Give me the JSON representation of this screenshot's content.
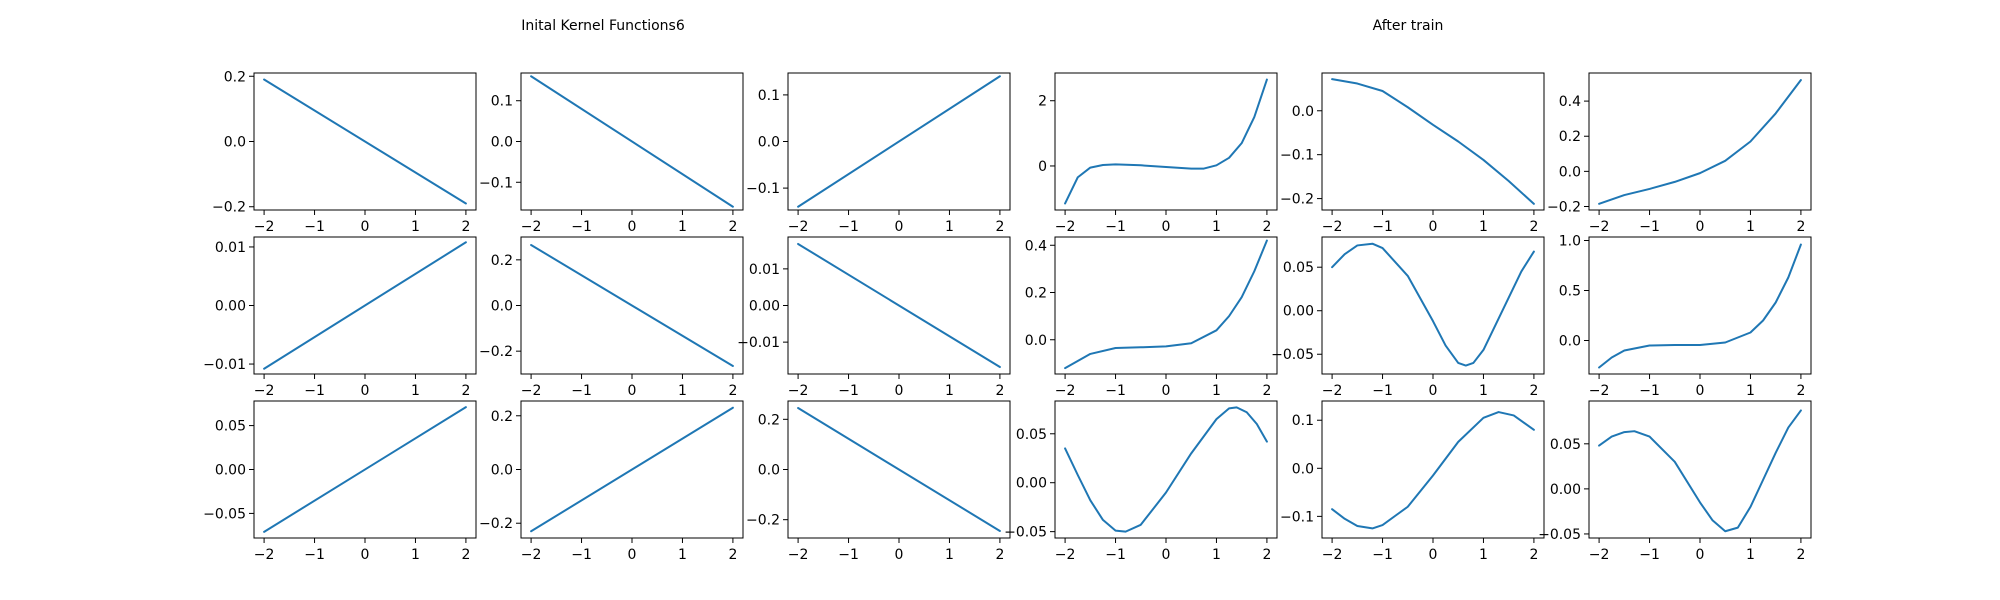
{
  "figure": {
    "left_title": "Inital Kernel Functions6",
    "right_title": "After train",
    "line_color": "#1f77b4"
  },
  "chart_data": [
    {
      "type": "line",
      "xlim": [
        -2,
        2
      ],
      "ylim": [
        -0.21,
        0.21
      ],
      "yticks": [
        -0.2,
        0.0,
        0.2
      ],
      "yticklabels": [
        "−0.2",
        "0.0",
        "0.2"
      ],
      "xticks": [
        -2,
        -1,
        0,
        1,
        2
      ],
      "xticklabels": [
        "−2",
        "−1",
        "0",
        "1",
        "2"
      ],
      "series": [
        {
          "x": [
            -2,
            2
          ],
          "y": [
            0.19,
            -0.19
          ]
        }
      ]
    },
    {
      "type": "line",
      "xlim": [
        -2,
        2
      ],
      "ylim": [
        -0.168,
        0.168
      ],
      "yticks": [
        -0.1,
        0.0,
        0.1
      ],
      "yticklabels": [
        "−0.1",
        "0.0",
        "0.1"
      ],
      "xticks": [
        -2,
        -1,
        0,
        1,
        2
      ],
      "xticklabels": [
        "−2",
        "−1",
        "0",
        "1",
        "2"
      ],
      "series": [
        {
          "x": [
            -2,
            2
          ],
          "y": [
            0.16,
            -0.16
          ]
        }
      ]
    },
    {
      "type": "line",
      "xlim": [
        -2,
        2
      ],
      "ylim": [
        -0.147,
        0.147
      ],
      "yticks": [
        -0.1,
        0.0,
        0.1
      ],
      "yticklabels": [
        "−0.1",
        "0.0",
        "0.1"
      ],
      "xticks": [
        -2,
        -1,
        0,
        1,
        2
      ],
      "xticklabels": [
        "−2",
        "−1",
        "0",
        "1",
        "2"
      ],
      "series": [
        {
          "x": [
            -2,
            2
          ],
          "y": [
            -0.14,
            0.14
          ]
        }
      ]
    },
    {
      "type": "line",
      "xlim": [
        -2,
        2
      ],
      "ylim": [
        -1.35,
        2.85
      ],
      "yticks": [
        0,
        2
      ],
      "yticklabels": [
        "0",
        "2"
      ],
      "xticks": [
        -2,
        -1,
        0,
        1,
        2
      ],
      "xticklabels": [
        "−2",
        "−1",
        "0",
        "1",
        "2"
      ],
      "series": [
        {
          "x": [
            -2,
            -1.75,
            -1.5,
            -1.25,
            -1,
            -0.5,
            0,
            0.5,
            0.75,
            1,
            1.25,
            1.5,
            1.75,
            2
          ],
          "y": [
            -1.15,
            -0.35,
            -0.05,
            0.03,
            0.05,
            0.02,
            -0.03,
            -0.08,
            -0.08,
            0.02,
            0.25,
            0.7,
            1.5,
            2.65
          ]
        }
      ]
    },
    {
      "type": "line",
      "xlim": [
        -2,
        2
      ],
      "ylim": [
        -0.226,
        0.086
      ],
      "yticks": [
        -0.2,
        -0.1,
        0.0
      ],
      "yticklabels": [
        "−0.2",
        "−0.1",
        "0.0"
      ],
      "xticks": [
        -2,
        -1,
        0,
        1,
        2
      ],
      "xticklabels": [
        "−2",
        "−1",
        "0",
        "1",
        "2"
      ],
      "series": [
        {
          "x": [
            -2,
            -1.5,
            -1,
            -0.5,
            0,
            0.5,
            1,
            1.5,
            2
          ],
          "y": [
            0.072,
            0.062,
            0.045,
            0.008,
            -0.032,
            -0.07,
            -0.112,
            -0.16,
            -0.212
          ]
        }
      ]
    },
    {
      "type": "line",
      "xlim": [
        -2,
        2
      ],
      "ylim": [
        -0.22,
        0.56
      ],
      "yticks": [
        -0.2,
        0.0,
        0.2,
        0.4
      ],
      "yticklabels": [
        "−0.2",
        "0.0",
        "0.2",
        "0.4"
      ],
      "xticks": [
        -2,
        -1,
        0,
        1,
        2
      ],
      "xticklabels": [
        "−2",
        "−1",
        "0",
        "1",
        "2"
      ],
      "series": [
        {
          "x": [
            -2,
            -1.5,
            -1,
            -0.5,
            0,
            0.5,
            1,
            1.5,
            2
          ],
          "y": [
            -0.185,
            -0.135,
            -0.1,
            -0.06,
            -0.01,
            0.06,
            0.17,
            0.33,
            0.52
          ]
        }
      ]
    },
    {
      "type": "line",
      "xlim": [
        -2,
        2
      ],
      "ylim": [
        -0.0117,
        0.0117
      ],
      "yticks": [
        -0.01,
        0.0,
        0.01
      ],
      "yticklabels": [
        "−0.01",
        "0.00",
        "0.01"
      ],
      "xticks": [
        -2,
        -1,
        0,
        1,
        2
      ],
      "xticklabels": [
        "−2",
        "−1",
        "0",
        "1",
        "2"
      ],
      "series": [
        {
          "x": [
            -2,
            2
          ],
          "y": [
            -0.0108,
            0.0108
          ]
        }
      ]
    },
    {
      "type": "line",
      "xlim": [
        -2,
        2
      ],
      "ylim": [
        -0.3,
        0.3
      ],
      "yticks": [
        -0.2,
        0.0,
        0.2
      ],
      "yticklabels": [
        "−0.2",
        "0.0",
        "0.2"
      ],
      "xticks": [
        -2,
        -1,
        0,
        1,
        2
      ],
      "xticklabels": [
        "−2",
        "−1",
        "0",
        "1",
        "2"
      ],
      "series": [
        {
          "x": [
            -2,
            2
          ],
          "y": [
            0.265,
            -0.265
          ]
        }
      ]
    },
    {
      "type": "line",
      "xlim": [
        -2,
        2
      ],
      "ylim": [
        -0.0187,
        0.0187
      ],
      "yticks": [
        -0.01,
        0.0,
        0.01
      ],
      "yticklabels": [
        "−0.01",
        "0.00",
        "0.01"
      ],
      "xticks": [
        -2,
        -1,
        0,
        1,
        2
      ],
      "xticklabels": [
        "−2",
        "−1",
        "0",
        "1",
        "2"
      ],
      "series": [
        {
          "x": [
            -2,
            2
          ],
          "y": [
            0.0168,
            -0.0168
          ]
        }
      ]
    },
    {
      "type": "line",
      "xlim": [
        -2,
        2
      ],
      "ylim": [
        -0.145,
        0.435
      ],
      "yticks": [
        0.0,
        0.2,
        0.4
      ],
      "yticklabels": [
        "0.0",
        "0.2",
        "0.4"
      ],
      "xticks": [
        -2,
        -1,
        0,
        1,
        2
      ],
      "xticklabels": [
        "−2",
        "−1",
        "0",
        "1",
        "2"
      ],
      "series": [
        {
          "x": [
            -2,
            -1.5,
            -1,
            -0.5,
            0,
            0.5,
            1,
            1.25,
            1.5,
            1.75,
            2
          ],
          "y": [
            -0.12,
            -0.06,
            -0.035,
            -0.032,
            -0.028,
            -0.015,
            0.04,
            0.1,
            0.18,
            0.29,
            0.42
          ]
        }
      ]
    },
    {
      "type": "line",
      "xlim": [
        -2,
        2
      ],
      "ylim": [
        -0.0727,
        0.0847
      ],
      "yticks": [
        -0.05,
        0.0,
        0.05
      ],
      "yticklabels": [
        "−0.05",
        "0.00",
        "0.05"
      ],
      "xticks": [
        -2,
        -1,
        0,
        1,
        2
      ],
      "xticklabels": [
        "−2",
        "−1",
        "0",
        "1",
        "2"
      ],
      "series": [
        {
          "x": [
            -2,
            -1.75,
            -1.5,
            -1.2,
            -1,
            -0.5,
            0,
            0.25,
            0.5,
            0.65,
            0.8,
            1,
            1.25,
            1.5,
            1.75,
            2
          ],
          "y": [
            0.05,
            0.065,
            0.075,
            0.077,
            0.072,
            0.04,
            -0.012,
            -0.04,
            -0.06,
            -0.063,
            -0.06,
            -0.045,
            -0.015,
            0.015,
            0.045,
            0.068
          ]
        }
      ]
    },
    {
      "type": "line",
      "xlim": [
        -2,
        2
      ],
      "ylim": [
        -0.335,
        1.035
      ],
      "yticks": [
        0.0,
        0.5,
        1.0
      ],
      "yticklabels": [
        "0.0",
        "0.5",
        "1.0"
      ],
      "xticks": [
        -2,
        -1,
        0,
        1,
        2
      ],
      "xticklabels": [
        "−2",
        "−1",
        "0",
        "1",
        "2"
      ],
      "series": [
        {
          "x": [
            -2,
            -1.75,
            -1.5,
            -1,
            -0.5,
            0,
            0.5,
            1,
            1.25,
            1.5,
            1.75,
            2
          ],
          "y": [
            -0.27,
            -0.17,
            -0.1,
            -0.05,
            -0.045,
            -0.045,
            -0.02,
            0.08,
            0.2,
            0.38,
            0.63,
            0.96
          ]
        }
      ]
    },
    {
      "type": "line",
      "xlim": [
        -2,
        2
      ],
      "ylim": [
        -0.078,
        0.078
      ],
      "yticks": [
        -0.05,
        0.0,
        0.05
      ],
      "yticklabels": [
        "−0.05",
        "0.00",
        "0.05"
      ],
      "xticks": [
        -2,
        -1,
        0,
        1,
        2
      ],
      "xticklabels": [
        "−2",
        "−1",
        "0",
        "1",
        "2"
      ],
      "series": [
        {
          "x": [
            -2,
            2
          ],
          "y": [
            -0.071,
            0.071
          ]
        }
      ]
    },
    {
      "type": "line",
      "xlim": [
        -2,
        2
      ],
      "ylim": [
        -0.255,
        0.255
      ],
      "yticks": [
        -0.2,
        0.0,
        0.2
      ],
      "yticklabels": [
        "−0.2",
        "0.0",
        "0.2"
      ],
      "xticks": [
        -2,
        -1,
        0,
        1,
        2
      ],
      "xticklabels": [
        "−2",
        "−1",
        "0",
        "1",
        "2"
      ],
      "series": [
        {
          "x": [
            -2,
            2
          ],
          "y": [
            -0.23,
            0.23
          ]
        }
      ]
    },
    {
      "type": "line",
      "xlim": [
        -2,
        2
      ],
      "ylim": [
        -0.273,
        0.273
      ],
      "yticks": [
        -0.2,
        0.0,
        0.2
      ],
      "yticklabels": [
        "−0.2",
        "0.0",
        "0.2"
      ],
      "xticks": [
        -2,
        -1,
        0,
        1,
        2
      ],
      "xticklabels": [
        "−2",
        "−1",
        "0",
        "1",
        "2"
      ],
      "series": [
        {
          "x": [
            -2,
            2
          ],
          "y": [
            0.245,
            -0.245
          ]
        }
      ]
    },
    {
      "type": "line",
      "xlim": [
        -2,
        2
      ],
      "ylim": [
        -0.0565,
        0.0835
      ],
      "yticks": [
        -0.05,
        0.0,
        0.05
      ],
      "yticklabels": [
        "−0.05",
        "0.00",
        "0.05"
      ],
      "xticks": [
        -2,
        -1,
        0,
        1,
        2
      ],
      "xticklabels": [
        "−2",
        "−1",
        "0",
        "1",
        "2"
      ],
      "series": [
        {
          "x": [
            -2,
            -1.75,
            -1.5,
            -1.25,
            -1,
            -0.8,
            -0.5,
            0,
            0.5,
            1,
            1.25,
            1.4,
            1.6,
            1.8,
            2
          ],
          "y": [
            0.035,
            0.008,
            -0.018,
            -0.038,
            -0.049,
            -0.05,
            -0.043,
            -0.01,
            0.03,
            0.065,
            0.076,
            0.077,
            0.072,
            0.06,
            0.042
          ]
        }
      ]
    },
    {
      "type": "line",
      "xlim": [
        -2,
        2
      ],
      "ylim": [
        -0.145,
        0.14
      ],
      "yticks": [
        -0.1,
        0.0,
        0.1
      ],
      "yticklabels": [
        "−0.1",
        "0.0",
        "0.1"
      ],
      "xticks": [
        -2,
        -1,
        0,
        1,
        2
      ],
      "xticklabels": [
        "−2",
        "−1",
        "0",
        "1",
        "2"
      ],
      "series": [
        {
          "x": [
            -2,
            -1.75,
            -1.5,
            -1.2,
            -1,
            -0.5,
            0,
            0.5,
            1,
            1.3,
            1.6,
            2
          ],
          "y": [
            -0.085,
            -0.105,
            -0.12,
            -0.125,
            -0.118,
            -0.08,
            -0.015,
            0.055,
            0.105,
            0.117,
            0.11,
            0.08
          ]
        }
      ]
    },
    {
      "type": "line",
      "xlim": [
        -2,
        2
      ],
      "ylim": [
        -0.0545,
        0.0975
      ],
      "yticks": [
        -0.05,
        0.0,
        0.05
      ],
      "yticklabels": [
        "−0.05",
        "0.00",
        "0.05"
      ],
      "xticks": [
        -2,
        -1,
        0,
        1,
        2
      ],
      "xticklabels": [
        "−2",
        "−1",
        "0",
        "1",
        "2"
      ],
      "series": [
        {
          "x": [
            -2,
            -1.75,
            -1.5,
            -1.3,
            -1,
            -0.5,
            0,
            0.25,
            0.5,
            0.75,
            1,
            1.25,
            1.5,
            1.75,
            2
          ],
          "y": [
            0.048,
            0.058,
            0.063,
            0.064,
            0.058,
            0.03,
            -0.015,
            -0.035,
            -0.047,
            -0.043,
            -0.02,
            0.01,
            0.04,
            0.068,
            0.087
          ]
        }
      ]
    }
  ]
}
